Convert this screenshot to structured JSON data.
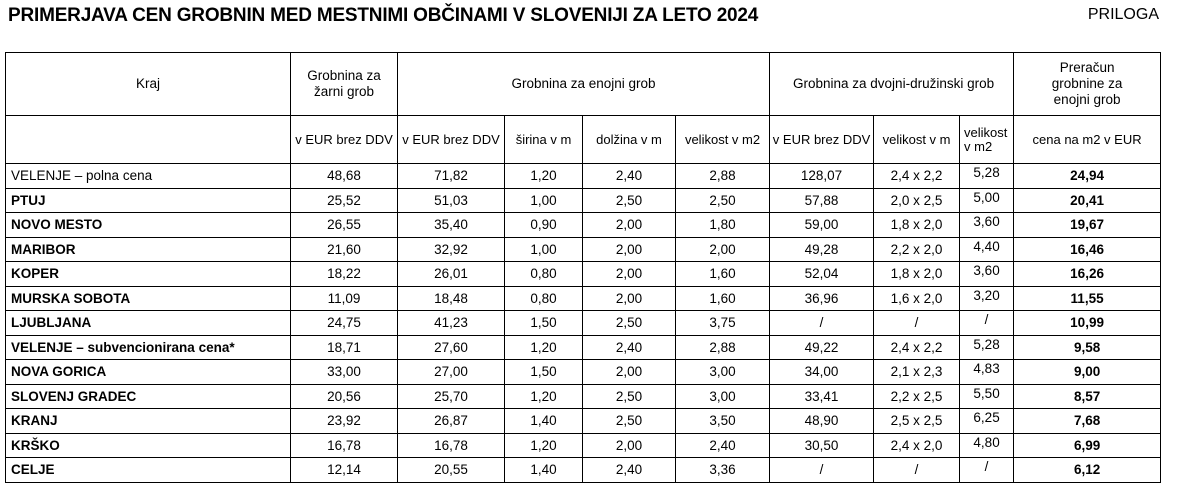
{
  "page": {
    "title": "PRIMERJAVA CEN GROBNIN MED MESTNIMI OBČINAMI V SLOVENIJI ZA LETO 2024",
    "corner_label": "PRILOGA"
  },
  "table": {
    "col_groups": [
      {
        "label": "Kraj"
      },
      {
        "label": "Grobnina za žarni grob"
      },
      {
        "label": "Grobnina za enojni grob"
      },
      {
        "label": "Grobnina za dvojni-družinski grob"
      },
      {
        "label": "Preračun grobnine za enojni grob"
      }
    ],
    "sub_headers": [
      "",
      "v EUR brez DDV",
      "v EUR brez DDV",
      "širina v m",
      "dolžina v m",
      "velikost v m2",
      "v EUR brez DDV",
      "velikost v m",
      "velikost v m2",
      "cena na m2 v EUR"
    ],
    "rows": [
      {
        "kraj": "VELENJE – polna cena",
        "bold": false,
        "values": [
          "48,68",
          "71,82",
          "1,20",
          "2,40",
          "2,88",
          "128,07",
          "2,4 x 2,2",
          "5,28",
          "24,94"
        ]
      },
      {
        "kraj": "PTUJ",
        "bold": true,
        "values": [
          "25,52",
          "51,03",
          "1,00",
          "2,50",
          "2,50",
          "57,88",
          "2,0 x 2,5",
          "5,00",
          "20,41"
        ]
      },
      {
        "kraj": "NOVO MESTO",
        "bold": true,
        "values": [
          "26,55",
          "35,40",
          "0,90",
          "2,00",
          "1,80",
          "59,00",
          "1,8 x 2,0",
          "3,60",
          "19,67"
        ]
      },
      {
        "kraj": "MARIBOR",
        "bold": true,
        "values": [
          "21,60",
          "32,92",
          "1,00",
          "2,00",
          "2,00",
          "49,28",
          "2,2 x 2,0",
          "4,40",
          "16,46"
        ]
      },
      {
        "kraj": "KOPER",
        "bold": true,
        "values": [
          "18,22",
          "26,01",
          "0,80",
          "2,00",
          "1,60",
          "52,04",
          "1,8 x 2,0",
          "3,60",
          "16,26"
        ]
      },
      {
        "kraj": "MURSKA SOBOTA",
        "bold": true,
        "values": [
          "11,09",
          "18,48",
          "0,80",
          "2,00",
          "1,60",
          "36,96",
          "1,6 x 2,0",
          "3,20",
          "11,55"
        ]
      },
      {
        "kraj": "LJUBLJANA",
        "bold": true,
        "values": [
          "24,75",
          "41,23",
          "1,50",
          "2,50",
          "3,75",
          "/",
          "/",
          "/",
          "10,99"
        ]
      },
      {
        "kraj": "VELENJE – subvencionirana cena*",
        "bold": true,
        "values": [
          "18,71",
          "27,60",
          "1,20",
          "2,40",
          "2,88",
          "49,22",
          "2,4 x 2,2",
          "5,28",
          "9,58"
        ]
      },
      {
        "kraj": "NOVA GORICA",
        "bold": true,
        "values": [
          "33,00",
          "27,00",
          "1,50",
          "2,00",
          "3,00",
          "34,00",
          "2,1 x 2,3",
          "4,83",
          "9,00"
        ]
      },
      {
        "kraj": "SLOVENJ GRADEC",
        "bold": true,
        "values": [
          "20,56",
          "25,70",
          "1,20",
          "2,50",
          "3,00",
          "33,41",
          "2,2 x 2,5",
          "5,50",
          "8,57"
        ]
      },
      {
        "kraj": "KRANJ",
        "bold": true,
        "values": [
          "23,92",
          "26,87",
          "1,40",
          "2,50",
          "3,50",
          "48,90",
          "2,5 x 2,5",
          "6,25",
          "7,68"
        ]
      },
      {
        "kraj": "KRŠKO",
        "bold": true,
        "values": [
          "16,78",
          "16,78",
          "1,20",
          "2,00",
          "2,40",
          "30,50",
          "2,4 x 2,0",
          "4,80",
          "6,99"
        ]
      },
      {
        "kraj": "CELJE",
        "bold": true,
        "values": [
          "12,14",
          "20,55",
          "1,40",
          "2,40",
          "3,36",
          "/",
          "/",
          "/",
          "6,12"
        ]
      }
    ]
  }
}
